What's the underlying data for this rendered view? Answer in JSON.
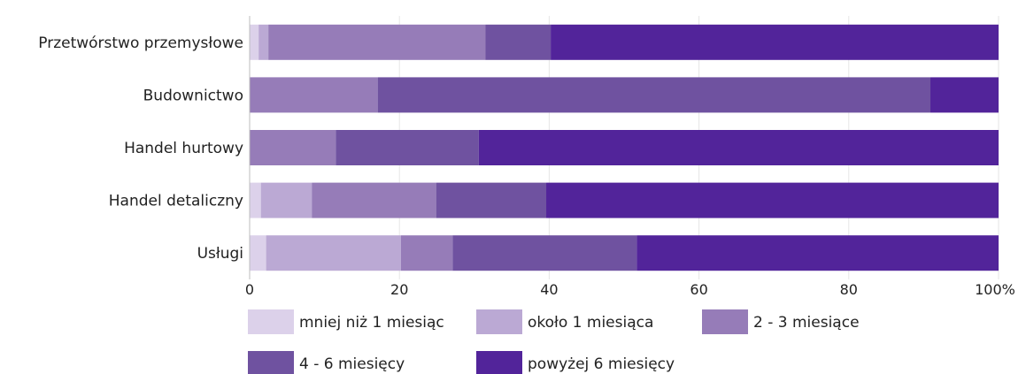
{
  "chart_data": {
    "type": "bar",
    "orientation": "horizontal",
    "stacked": true,
    "categories": [
      "Przetwórstwo przemysłowe",
      "Budownictwo",
      "Handel hurtowy",
      "Handel detaliczny",
      "Usługi"
    ],
    "series": [
      {
        "name": "mniej niż 1 miesiąc",
        "color": "#dcd1ea",
        "values": [
          1.2,
          0,
          0,
          1.5,
          2.2
        ]
      },
      {
        "name": "około 1 miesiąca",
        "color": "#bba9d4",
        "values": [
          1.3,
          0,
          0,
          6.8,
          18.0
        ]
      },
      {
        "name": "2 - 3 miesiące",
        "color": "#967cb8",
        "values": [
          29.0,
          17.1,
          11.5,
          16.6,
          6.9
        ]
      },
      {
        "name": "4 - 6 miesięcy",
        "color": "#6f52a0",
        "values": [
          8.7,
          73.8,
          19.1,
          14.7,
          24.6
        ]
      },
      {
        "name": "powyżej 6 miesięcy",
        "color": "#52249a",
        "values": [
          59.8,
          9.1,
          69.4,
          60.4,
          48.3
        ]
      }
    ],
    "xlim": [
      0,
      100
    ],
    "xticks": [
      "0",
      "20",
      "40",
      "60",
      "80",
      "100%"
    ],
    "grid": true,
    "legend_position": "bottom"
  }
}
